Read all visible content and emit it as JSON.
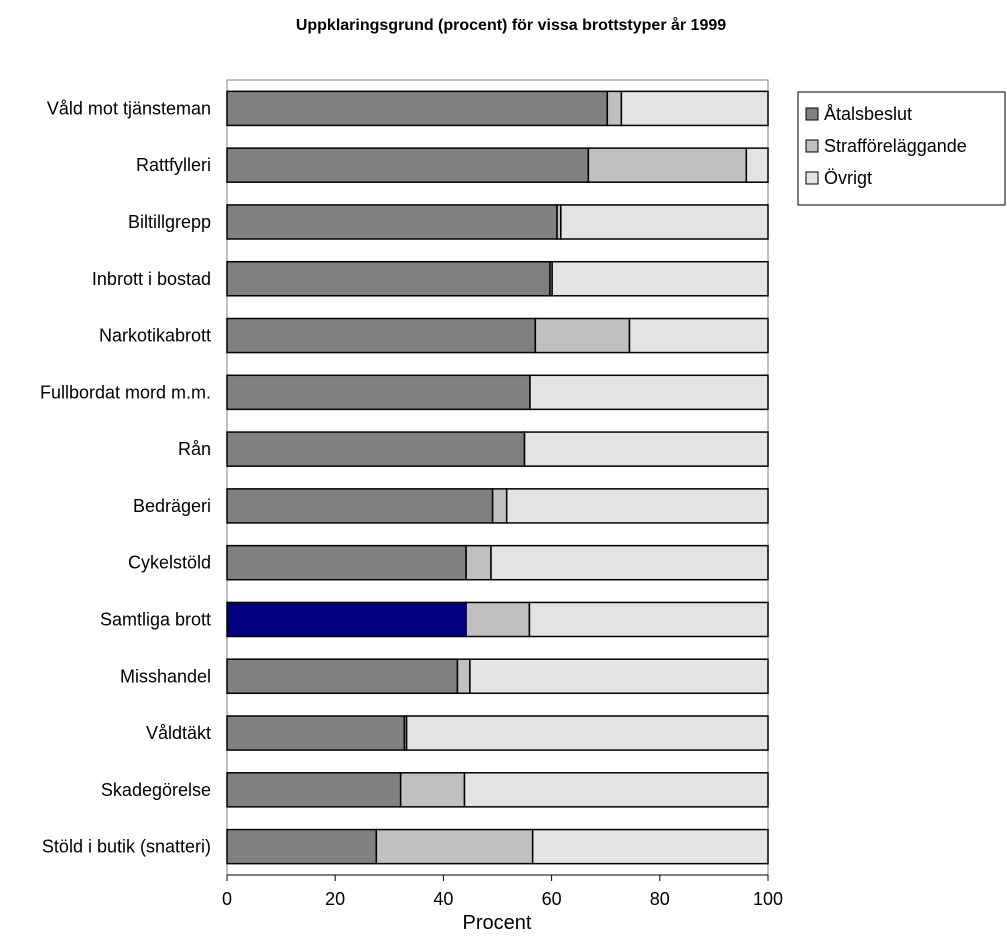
{
  "chart_data": {
    "type": "bar",
    "orientation": "horizontal",
    "stacked": true,
    "title": "Uppklaringsgrund (procent) för vissa brottstyper år 1999",
    "xlabel": "Procent",
    "ylabel": "",
    "xlim": [
      0,
      100
    ],
    "x_ticks": [
      "0",
      "20",
      "40",
      "60",
      "80",
      "100"
    ],
    "grid": false,
    "legend_position": "top-right",
    "categories": [
      "Våld mot tjänsteman",
      "Rattfylleri",
      "Biltillgrepp",
      "Inbrott i bostad",
      "Narkotikabrott",
      "Fullbordat mord m.m.",
      "Rån",
      "Bedrägeri",
      "Cykelstöld",
      "Samtliga brott",
      "Misshandel ",
      "Våldtäkt",
      "Skadegörelse",
      "Stöld i butik (snatteri)"
    ],
    "series": [
      {
        "name": "Åtalsbeslut",
        "color": "#808080",
        "values": [
          70.3,
          66.8,
          61.0,
          59.7,
          57.0,
          56.0,
          55.0,
          49.1,
          44.2,
          44.2,
          42.6,
          32.8,
          32.1,
          27.6
        ]
      },
      {
        "name": "Strafföreläggande",
        "color": "#c0c0c0",
        "values": [
          2.6,
          29.2,
          0.7,
          0.4,
          17.4,
          0,
          0,
          2.6,
          4.6,
          11.7,
          2.3,
          0.4,
          11.8,
          28.9
        ]
      },
      {
        "name": "Övrigt",
        "color": "#e3e3e3",
        "values": [
          27.1,
          4.0,
          38.3,
          39.9,
          25.6,
          44.0,
          45.0,
          48.3,
          51.2,
          44.1,
          55.1,
          66.8,
          56.1,
          43.5
        ]
      }
    ],
    "highlight": {
      "category_index": 9,
      "series_index": 0,
      "color": "#000080"
    },
    "highlight_color": "#000080",
    "plot_border_color": "#808080",
    "bar_stroke_color": "#000000"
  }
}
